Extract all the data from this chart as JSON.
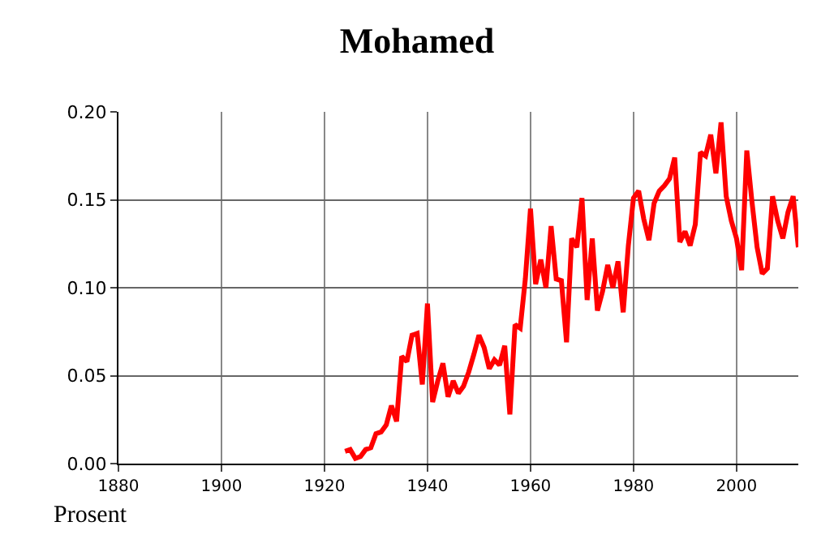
{
  "chart_data": {
    "type": "line",
    "title": "Mohamed",
    "annotations": [
      "Prosent"
    ],
    "x": [
      1924,
      1925,
      1926,
      1927,
      1928,
      1929,
      1930,
      1931,
      1932,
      1933,
      1934,
      1935,
      1936,
      1937,
      1938,
      1939,
      1940,
      1941,
      1942,
      1943,
      1944,
      1945,
      1946,
      1947,
      1948,
      1949,
      1950,
      1951,
      1952,
      1953,
      1954,
      1955,
      1956,
      1957,
      1958,
      1959,
      1960,
      1961,
      1962,
      1963,
      1964,
      1965,
      1966,
      1967,
      1968,
      1969,
      1970,
      1971,
      1972,
      1973,
      1974,
      1975,
      1976,
      1977,
      1978,
      1979,
      1980,
      1981,
      1982,
      1983,
      1984,
      1985,
      1986,
      1987,
      1988,
      1989,
      1990,
      1991,
      1992,
      1993,
      1994,
      1995,
      1996,
      1997,
      1998,
      1999,
      2000,
      2001,
      2002,
      2003,
      2004,
      2005,
      2006,
      2007,
      2008,
      2009,
      2010,
      2011,
      2012
    ],
    "series": [
      {
        "color": "#ff0000",
        "values": [
          0.007,
          0.008,
          0.003,
          0.004,
          0.008,
          0.009,
          0.017,
          0.018,
          0.022,
          0.033,
          0.024,
          0.061,
          0.058,
          0.073,
          0.074,
          0.045,
          0.091,
          0.035,
          0.047,
          0.057,
          0.038,
          0.047,
          0.04,
          0.044,
          0.052,
          0.062,
          0.073,
          0.066,
          0.054,
          0.059,
          0.056,
          0.067,
          0.028,
          0.079,
          0.077,
          0.105,
          0.145,
          0.102,
          0.116,
          0.1,
          0.135,
          0.105,
          0.104,
          0.069,
          0.128,
          0.123,
          0.151,
          0.093,
          0.128,
          0.087,
          0.098,
          0.113,
          0.1,
          0.115,
          0.086,
          0.124,
          0.151,
          0.155,
          0.139,
          0.127,
          0.148,
          0.155,
          0.158,
          0.162,
          0.174,
          0.126,
          0.132,
          0.124,
          0.136,
          0.177,
          0.175,
          0.187,
          0.165,
          0.194,
          0.152,
          0.138,
          0.128,
          0.11,
          0.178,
          0.149,
          0.123,
          0.108,
          0.111,
          0.152,
          0.138,
          0.128,
          0.143,
          0.152,
          0.123
        ]
      }
    ],
    "xlim": [
      1880,
      2012
    ],
    "xticks": [
      1880,
      1900,
      1920,
      1940,
      1960,
      1980,
      2000
    ],
    "ylim": [
      0,
      0.2
    ],
    "yticks": [
      {
        "value": 0,
        "label": "0.00"
      },
      {
        "value": 0.05,
        "label": "0.05"
      },
      {
        "value": 0.1,
        "label": "0.10"
      },
      {
        "value": 0.15,
        "label": "0.15"
      },
      {
        "value": 0.2,
        "label": "0.20"
      }
    ],
    "grid": true,
    "marker": "none",
    "line_style": "solid"
  }
}
